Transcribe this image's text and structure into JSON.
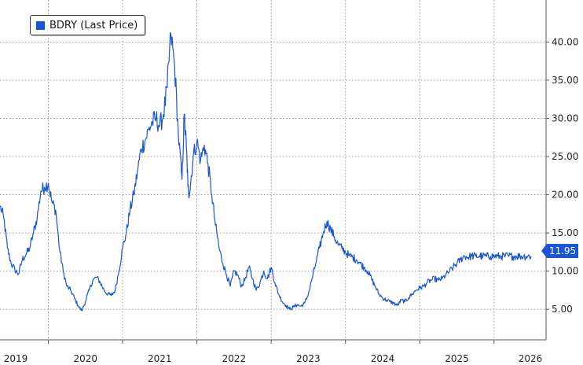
{
  "chart_data": {
    "type": "line",
    "legend": {
      "label": "BDRY (Last Price)",
      "placement": "top-left"
    },
    "y_axis": {
      "side": "right",
      "ylim": [
        1,
        45.5
      ],
      "ticks": [
        "5.00",
        "10.00",
        "15.00",
        "20.00",
        "25.00",
        "30.00",
        "35.00",
        "40.00"
      ]
    },
    "x_axis": {
      "range": [
        2018.85,
        2026.2
      ],
      "ticks": [
        "2019",
        "2020",
        "2021",
        "2022",
        "2023",
        "2024",
        "2025",
        "2026"
      ]
    },
    "grid": true,
    "last_value": 11.95,
    "last_value_label": "11.95",
    "colors": {
      "line": "#1a55d6",
      "grid": "#9a9a9a",
      "axis": "#555555"
    },
    "series": [
      {
        "name": "BDRY (Last Price)",
        "x": [
          2018.85,
          2018.9,
          2018.95,
          2019.0,
          2019.05,
          2019.1,
          2019.15,
          2019.2,
          2019.25,
          2019.3,
          2019.35,
          2019.4,
          2019.45,
          2019.5,
          2019.55,
          2019.6,
          2019.65,
          2019.7,
          2019.75,
          2019.8,
          2019.85,
          2019.9,
          2019.95,
          2020.0,
          2020.05,
          2020.1,
          2020.15,
          2020.2,
          2020.25,
          2020.3,
          2020.35,
          2020.4,
          2020.45,
          2020.5,
          2020.55,
          2020.6,
          2020.65,
          2020.7,
          2020.75,
          2020.8,
          2020.85,
          2020.9,
          2020.95,
          2021.0,
          2021.05,
          2021.1,
          2021.15,
          2021.2,
          2021.25,
          2021.3,
          2021.33,
          2021.36,
          2021.38,
          2021.4,
          2021.45,
          2021.5,
          2021.55,
          2021.6,
          2021.65,
          2021.7,
          2021.75,
          2021.8,
          2021.85,
          2021.9,
          2021.95,
          2022.0,
          2022.05,
          2022.1,
          2022.15,
          2022.2,
          2022.25,
          2022.3,
          2022.35,
          2022.4,
          2022.45,
          2022.5,
          2022.55,
          2022.6,
          2022.65,
          2022.7,
          2022.75,
          2022.8,
          2022.85,
          2022.9,
          2022.95,
          2023.0,
          2023.05,
          2023.1,
          2023.15,
          2023.2,
          2023.25,
          2023.3,
          2023.35,
          2023.4,
          2023.45,
          2023.5,
          2023.55,
          2023.6,
          2023.65,
          2023.7,
          2023.75,
          2023.8,
          2023.85,
          2023.9,
          2023.95,
          2024.0,
          2024.05,
          2024.1,
          2024.15,
          2024.2,
          2024.25,
          2024.3,
          2024.35,
          2024.4,
          2024.45,
          2024.5,
          2024.55,
          2024.6,
          2024.65,
          2024.7,
          2024.75,
          2024.8,
          2024.85,
          2024.9,
          2024.95,
          2025.0,
          2025.05,
          2025.1,
          2025.15,
          2025.2,
          2025.25,
          2025.3,
          2025.35,
          2025.4,
          2025.45,
          2025.5,
          2025.55,
          2025.6,
          2025.65,
          2025.7,
          2025.75,
          2025.8,
          2025.85,
          2025.9,
          2025.95,
          2026.0
        ],
        "y": [
          18.5,
          17.0,
          13.0,
          11.0,
          10.2,
          9.6,
          11.5,
          12.2,
          13.0,
          15.0,
          17.0,
          20.5,
          21.0,
          21.5,
          19.0,
          18.0,
          13.0,
          10.0,
          8.0,
          7.5,
          6.5,
          5.5,
          4.8,
          6.0,
          7.5,
          8.8,
          9.2,
          8.5,
          7.5,
          7.0,
          6.8,
          7.5,
          10.0,
          13.0,
          15.0,
          18.0,
          20.0,
          23.0,
          26.0,
          27.0,
          28.5,
          29.5,
          30.0,
          29.0,
          30.5,
          34.0,
          41.0,
          37.0,
          28.0,
          22.0,
          30.5,
          26.0,
          21.0,
          20.0,
          25.0,
          27.0,
          24.5,
          26.5,
          24.0,
          20.0,
          16.0,
          13.0,
          11.0,
          9.5,
          8.0,
          10.0,
          9.5,
          8.0,
          9.0,
          10.5,
          9.0,
          7.5,
          8.5,
          10.0,
          9.0,
          10.5,
          8.5,
          7.0,
          6.0,
          5.5,
          5.0,
          5.3,
          5.6,
          5.4,
          5.8,
          7.0,
          9.0,
          11.0,
          13.0,
          15.0,
          16.5,
          15.5,
          14.5,
          13.5,
          13.0,
          12.5,
          12.0,
          11.8,
          11.5,
          11.0,
          10.5,
          10.0,
          9.0,
          8.0,
          7.0,
          6.5,
          6.2,
          6.0,
          5.8,
          5.5,
          6.2,
          6.0,
          6.5,
          7.0,
          7.5,
          7.8,
          8.0,
          8.5,
          8.8,
          9.0,
          8.8,
          9.0,
          9.5,
          10.0,
          10.5,
          11.0,
          11.5,
          12.0,
          11.8,
          12.0,
          11.95,
          11.95,
          11.95,
          11.95,
          11.95,
          11.95,
          11.95,
          11.95,
          11.95,
          11.95,
          11.95,
          11.95,
          11.95,
          11.95,
          11.95,
          11.95
        ]
      }
    ]
  }
}
